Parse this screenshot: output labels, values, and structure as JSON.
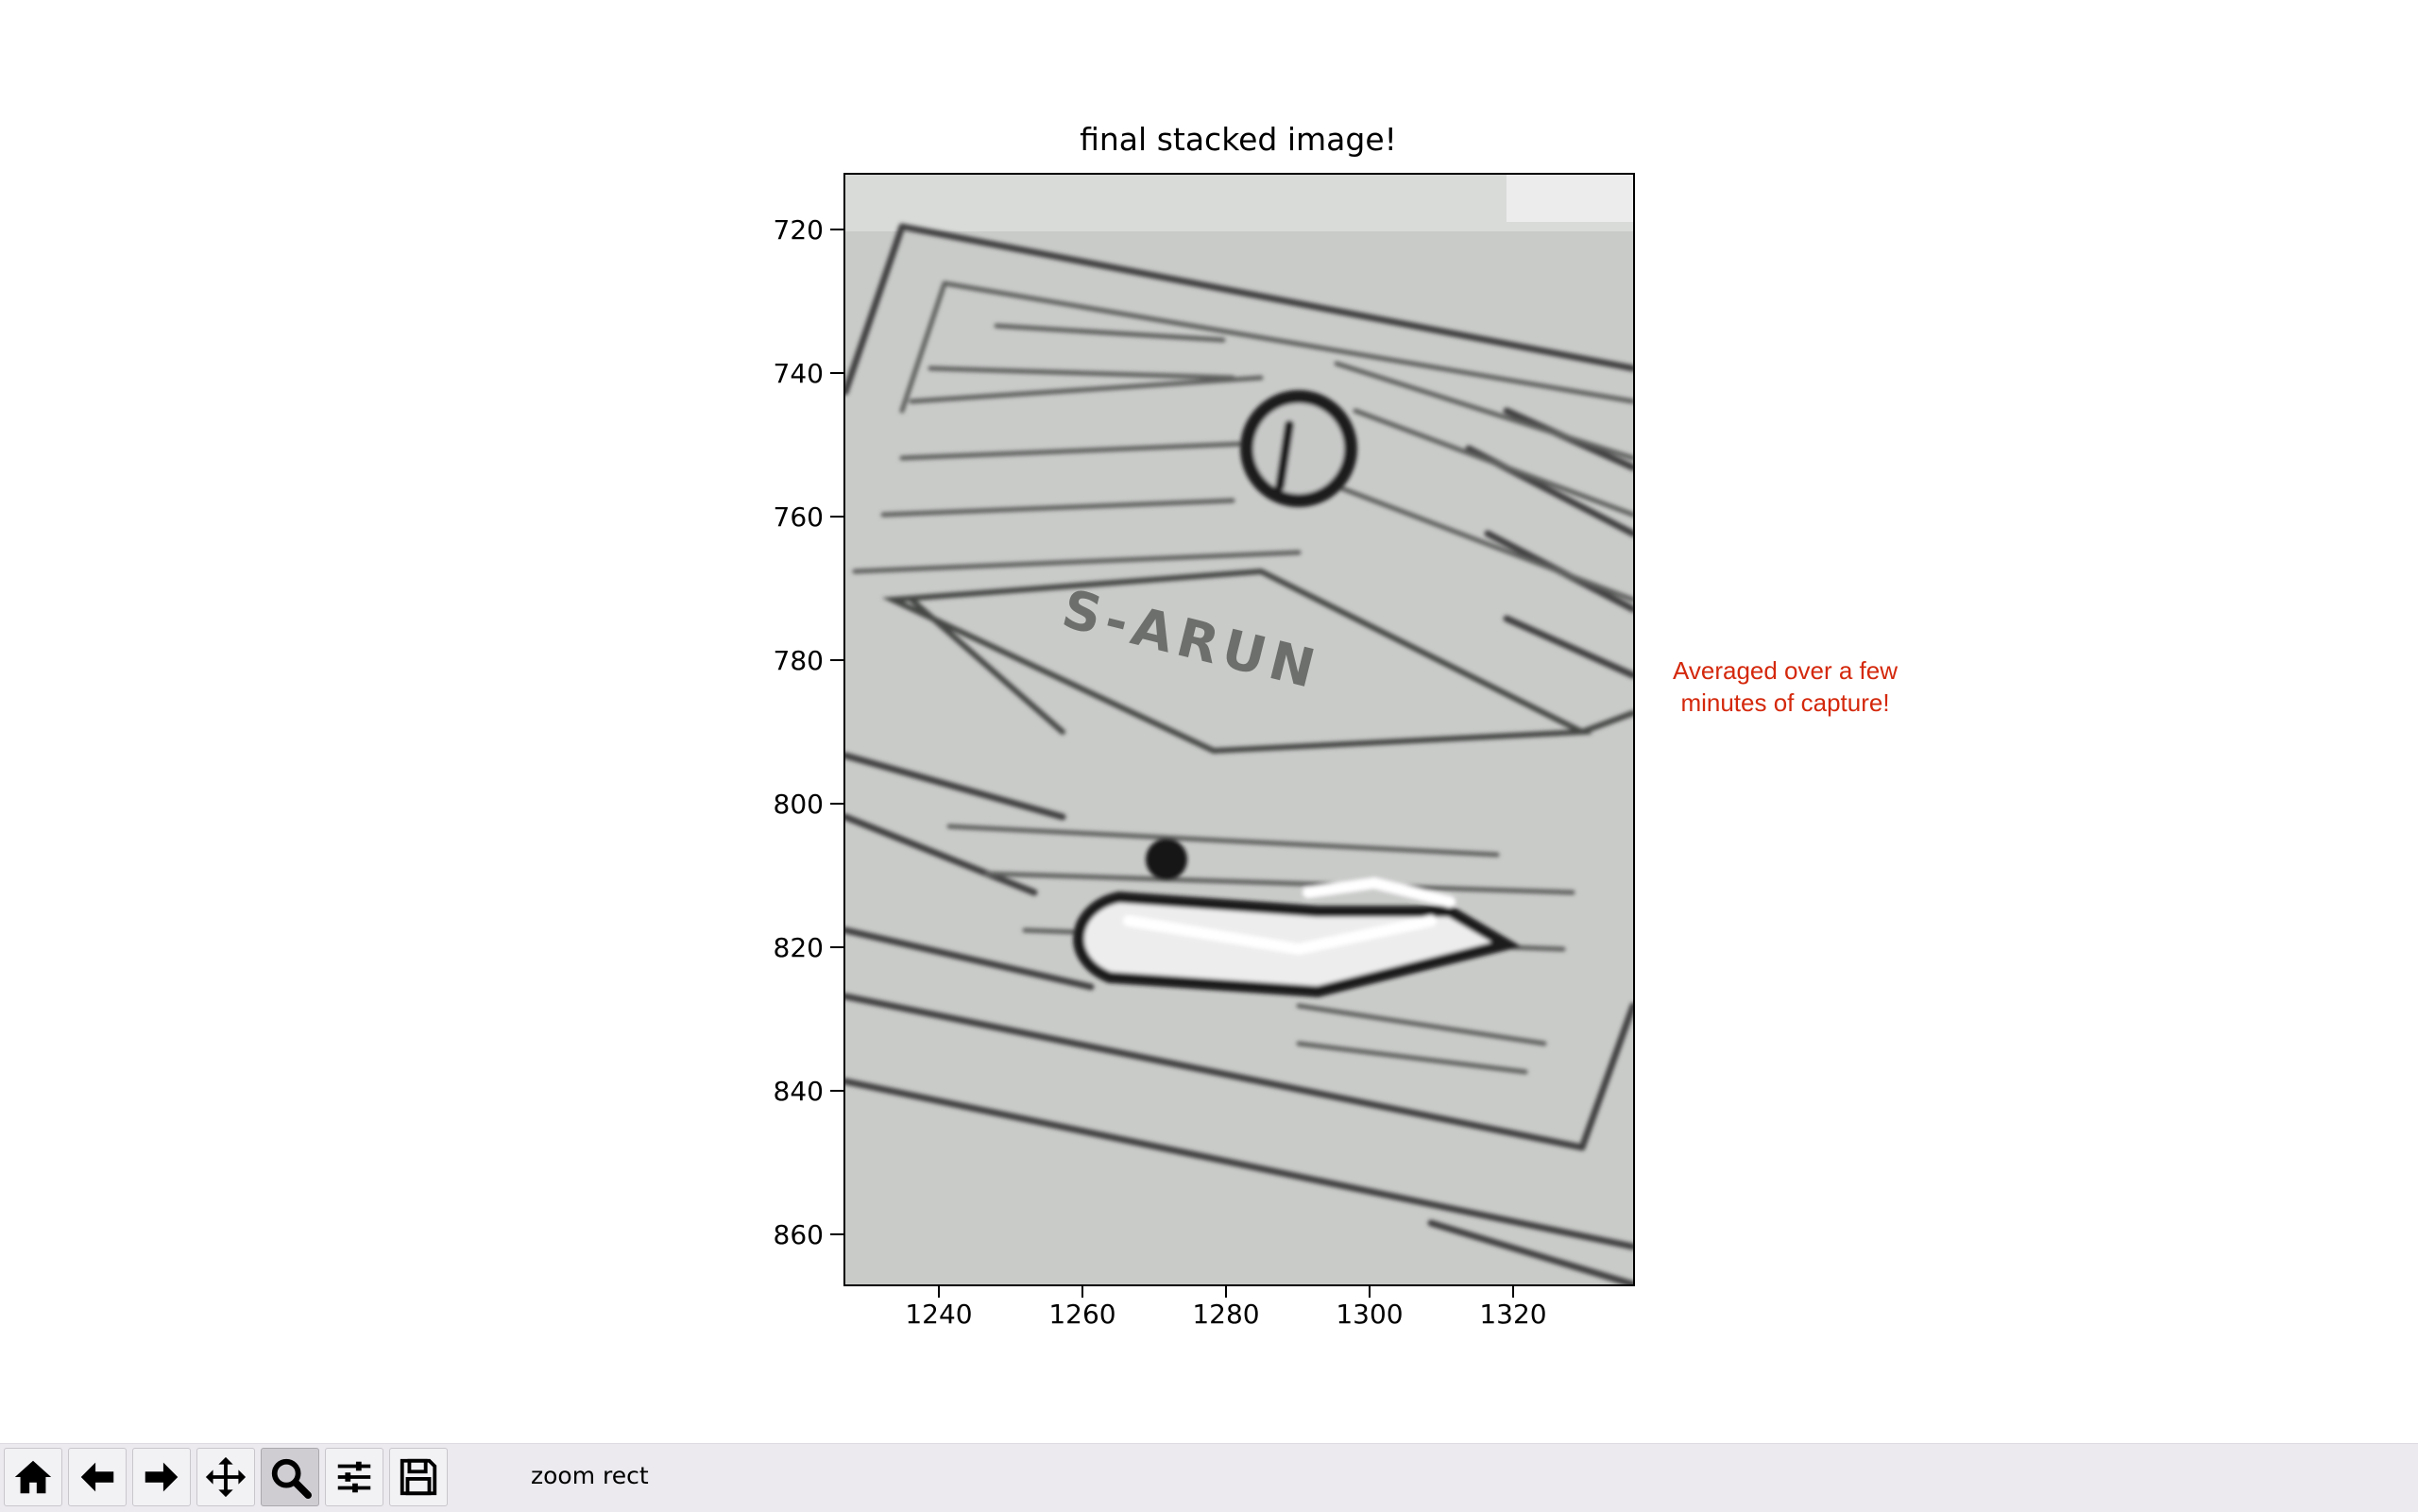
{
  "figure": {
    "title": "final stacked image!",
    "annotation": "Averaged over a few minutes of capture!",
    "annotation_color": "#d4280c",
    "image_tones": [
      "#c9cbc9",
      "#d6d8d6",
      "#9a9c9a",
      "#3a3a3a",
      "#f4f4f4"
    ],
    "image_text": "S-ARUN"
  },
  "chart_data": {
    "type": "image",
    "title": "final stacked image!",
    "xlabel": "",
    "ylabel": "",
    "xlim": [
      1226.8,
      1336.5
    ],
    "ylim": [
      867.0,
      712.0
    ],
    "xticks": [
      1240,
      1260,
      1280,
      1300,
      1320
    ],
    "yticks": [
      720,
      740,
      760,
      780,
      800,
      820,
      840,
      860
    ],
    "xtick_labels": [
      "1240",
      "1260",
      "1280",
      "1300",
      "1320"
    ],
    "ytick_labels": [
      "720",
      "740",
      "760",
      "780",
      "800",
      "820",
      "840",
      "860"
    ],
    "grid": false,
    "colormap": "gray"
  },
  "toolbar": {
    "buttons": [
      {
        "name": "home",
        "icon": "home-icon",
        "active": false
      },
      {
        "name": "back",
        "icon": "arrow-left-icon",
        "active": false
      },
      {
        "name": "forward",
        "icon": "arrow-right-icon",
        "active": false
      },
      {
        "name": "pan",
        "icon": "move-icon",
        "active": false
      },
      {
        "name": "zoom",
        "icon": "magnifier-icon",
        "active": true
      },
      {
        "name": "configure-subplots",
        "icon": "sliders-icon",
        "active": false
      },
      {
        "name": "save",
        "icon": "floppy-disk-icon",
        "active": false
      }
    ],
    "message": "zoom rect"
  }
}
